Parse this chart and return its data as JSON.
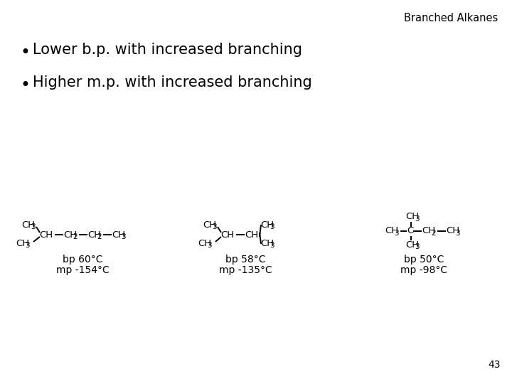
{
  "title": "Branched Alkanes",
  "bullet1": "Lower b.p. with increased branching",
  "bullet2": "Higher m.p. with increased branching",
  "page_number": "43",
  "bg_color": "#ffffff",
  "text_color": "#000000",
  "title_fontsize": 10.5,
  "bullet_fontsize": 15,
  "mol_fontsize": 9.5,
  "sub_fontsize": 7.5,
  "label_fontsize": 10,
  "page_fontsize": 10,
  "mol1_bp": "bp 60°C",
  "mol1_mp": "mp -154°C",
  "mol2_bp": "bp 58°C",
  "mol2_mp": "mp -135°C",
  "mol3_bp": "bp 50°C",
  "mol3_mp": "mp -98°C"
}
